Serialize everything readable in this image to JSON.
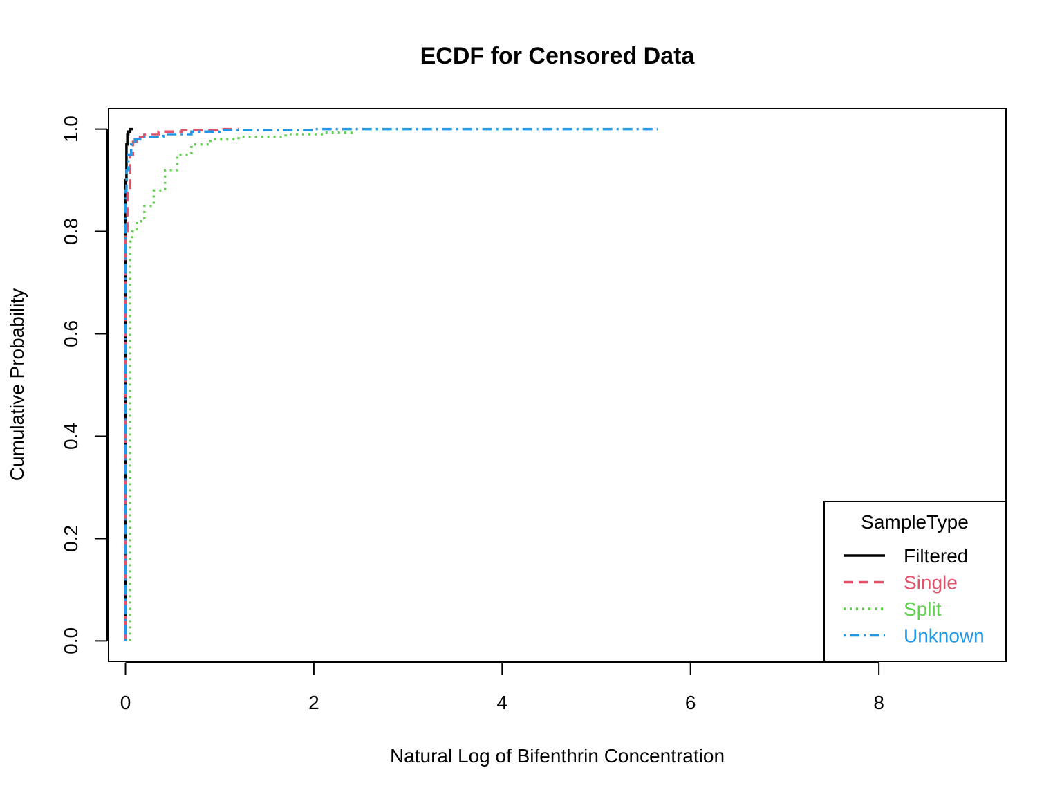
{
  "chart_data": {
    "type": "line",
    "title": "ECDF for Censored Data",
    "xlabel": "Natural Log of Bifenthrin Concentration",
    "ylabel": "Cumulative Probability",
    "xlim": [
      -0.18,
      9.35
    ],
    "ylim": [
      -0.04,
      1.04
    ],
    "x_ticks": [
      0,
      2,
      4,
      6,
      8
    ],
    "x_tick_labels": [
      "0",
      "2",
      "4",
      "6",
      "8"
    ],
    "y_ticks": [
      0.0,
      0.2,
      0.4,
      0.6,
      0.8,
      1.0
    ],
    "y_tick_labels": [
      "0.0",
      "0.2",
      "0.4",
      "0.6",
      "0.8",
      "1.0"
    ],
    "grid": false,
    "legend": {
      "title": "SampleType",
      "placement": "bottom-right"
    },
    "series": [
      {
        "name": "Filtered",
        "color": "#000000",
        "dash": "solid",
        "x": [
          0.0,
          0.0,
          0.01,
          0.02,
          0.03,
          0.05,
          0.08
        ],
        "y": [
          0.0,
          0.9,
          0.97,
          0.99,
          0.995,
          1.0,
          1.0
        ]
      },
      {
        "name": "Single",
        "color": "#DF536B",
        "dash": "dashed",
        "x": [
          0.0,
          0.0,
          0.02,
          0.05,
          0.08,
          0.12,
          0.2,
          0.35,
          0.6,
          1.0,
          1.2
        ],
        "y": [
          0.0,
          0.8,
          0.88,
          0.95,
          0.975,
          0.985,
          0.99,
          0.995,
          0.998,
          1.0,
          1.0
        ]
      },
      {
        "name": "Split",
        "color": "#61D04F",
        "dash": "dotted",
        "x": [
          0.05,
          0.05,
          0.07,
          0.12,
          0.2,
          0.3,
          0.42,
          0.55,
          0.7,
          0.9,
          1.2,
          1.7,
          2.1,
          2.4
        ],
        "y": [
          0.0,
          0.78,
          0.8,
          0.82,
          0.85,
          0.88,
          0.92,
          0.95,
          0.97,
          0.98,
          0.985,
          0.99,
          0.993,
          1.0
        ]
      },
      {
        "name": "Unknown",
        "color": "#2297E6",
        "dash": "dotdash",
        "x": [
          0.0,
          0.0,
          0.01,
          0.03,
          0.06,
          0.1,
          0.2,
          0.4,
          0.7,
          1.0,
          2.0,
          3.5,
          5.65
        ],
        "y": [
          0.0,
          0.88,
          0.92,
          0.95,
          0.97,
          0.98,
          0.985,
          0.99,
          0.995,
          0.998,
          1.0,
          1.0,
          1.0
        ]
      }
    ]
  }
}
